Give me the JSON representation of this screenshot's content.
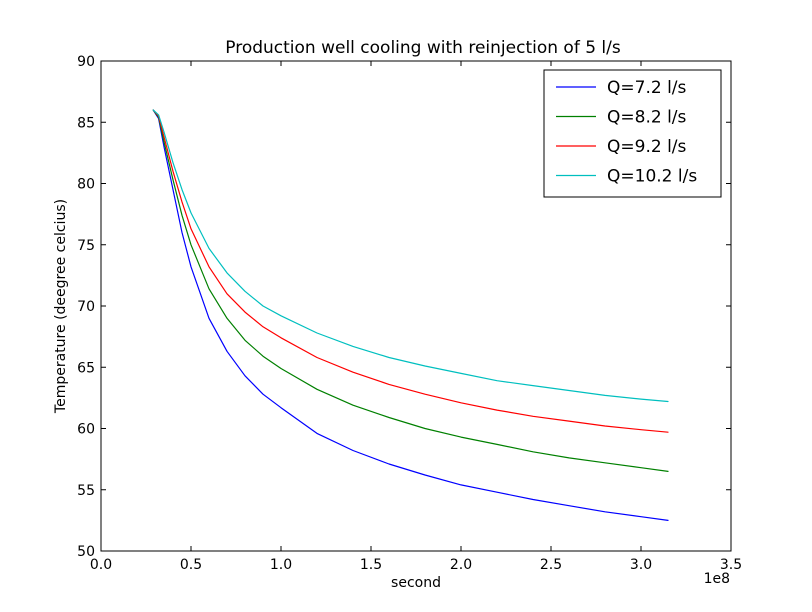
{
  "chart_data": {
    "type": "line",
    "title": "Production well cooling with reinjection of 5 l/s",
    "xlabel": "second",
    "ylabel": "Temperature (deegree celcius)",
    "x_offset_label": "1e8",
    "xlim": [
      0.0,
      3.5
    ],
    "ylim": [
      50,
      90
    ],
    "xticks": [
      0.0,
      0.5,
      1.0,
      1.5,
      2.0,
      2.5,
      3.0,
      3.5
    ],
    "xtick_labels": [
      "0.0",
      "0.5",
      "1.0",
      "1.5",
      "2.0",
      "2.5",
      "3.0",
      "3.5"
    ],
    "yticks": [
      50,
      55,
      60,
      65,
      70,
      75,
      80,
      85,
      90
    ],
    "ytick_labels": [
      "50",
      "55",
      "60",
      "65",
      "70",
      "75",
      "80",
      "85",
      "90"
    ],
    "grid": false,
    "legend_position": "top-right",
    "x": [
      0.29,
      0.32,
      0.35,
      0.4,
      0.45,
      0.5,
      0.6,
      0.7,
      0.8,
      0.9,
      1.0,
      1.2,
      1.4,
      1.6,
      1.8,
      2.0,
      2.2,
      2.4,
      2.6,
      2.8,
      3.0,
      3.15
    ],
    "series": [
      {
        "name": "Q=7.2 l/s",
        "color": "#0000ff",
        "values": [
          86.0,
          85.3,
          83.0,
          79.5,
          76.0,
          73.2,
          69.0,
          66.3,
          64.3,
          62.8,
          61.7,
          59.6,
          58.2,
          57.1,
          56.2,
          55.4,
          54.8,
          54.2,
          53.7,
          53.2,
          52.8,
          52.5
        ]
      },
      {
        "name": "Q=8.2 l/s",
        "color": "#008000",
        "values": [
          86.0,
          85.4,
          83.4,
          80.3,
          77.4,
          75.0,
          71.4,
          69.0,
          67.2,
          65.9,
          64.9,
          63.2,
          61.9,
          60.9,
          60.0,
          59.3,
          58.7,
          58.1,
          57.6,
          57.2,
          56.8,
          56.5
        ]
      },
      {
        "name": "Q=9.2 l/s",
        "color": "#ff0000",
        "values": [
          86.0,
          85.5,
          83.8,
          81.0,
          78.5,
          76.3,
          73.2,
          71.0,
          69.5,
          68.3,
          67.4,
          65.8,
          64.6,
          63.6,
          62.8,
          62.1,
          61.5,
          61.0,
          60.6,
          60.2,
          59.9,
          59.7
        ]
      },
      {
        "name": "Q=10.2 l/s",
        "color": "#00bfbf",
        "values": [
          86.0,
          85.6,
          84.2,
          81.7,
          79.5,
          77.6,
          74.7,
          72.7,
          71.2,
          70.0,
          69.2,
          67.8,
          66.7,
          65.8,
          65.1,
          64.5,
          63.9,
          63.5,
          63.1,
          62.7,
          62.4,
          62.2
        ]
      }
    ]
  }
}
